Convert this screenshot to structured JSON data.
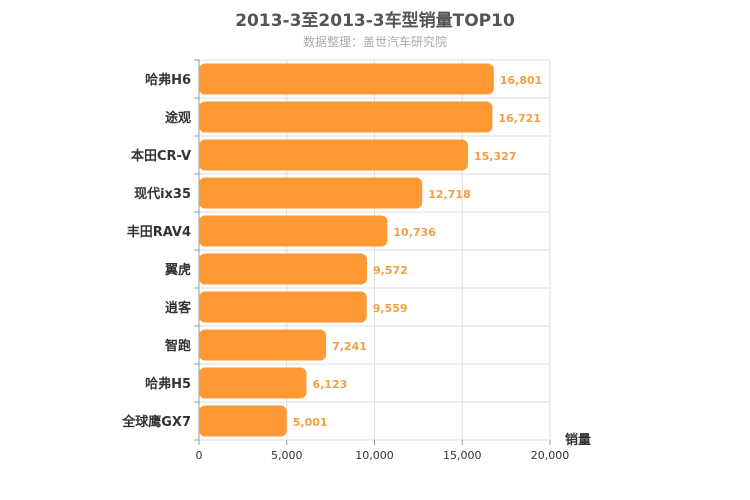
{
  "chart_data": {
    "type": "bar",
    "orientation": "horizontal",
    "title": "2013-3至2013-3车型销量TOP10",
    "subtitle": "数据整理：盖世汽车研究院",
    "categories": [
      "哈弗H6",
      "途观",
      "本田CR-V",
      "现代ix35",
      "丰田RAV4",
      "翼虎",
      "逍客",
      "智跑",
      "哈弗H5",
      "全球鹰GX7"
    ],
    "values": [
      16801,
      16721,
      15327,
      12718,
      10736,
      9572,
      9559,
      7241,
      6123,
      5001
    ],
    "value_labels": [
      "16,801",
      "16,721",
      "15,327",
      "12,718",
      "10,736",
      "9,572",
      "9,559",
      "7,241",
      "6,123",
      "5,001"
    ],
    "xlabel": "销量",
    "ylabel": "",
    "xlim": [
      0,
      20000
    ],
    "ticks": [
      0,
      5000,
      10000,
      15000,
      20000
    ],
    "tick_labels": [
      "0",
      "5,000",
      "10,000",
      "15,000",
      "20,000"
    ],
    "grid": true,
    "colors": {
      "bar": "#ff9933",
      "value_label": "#f0a040",
      "axis_text": "#333333",
      "grid": "#dddddd"
    }
  }
}
